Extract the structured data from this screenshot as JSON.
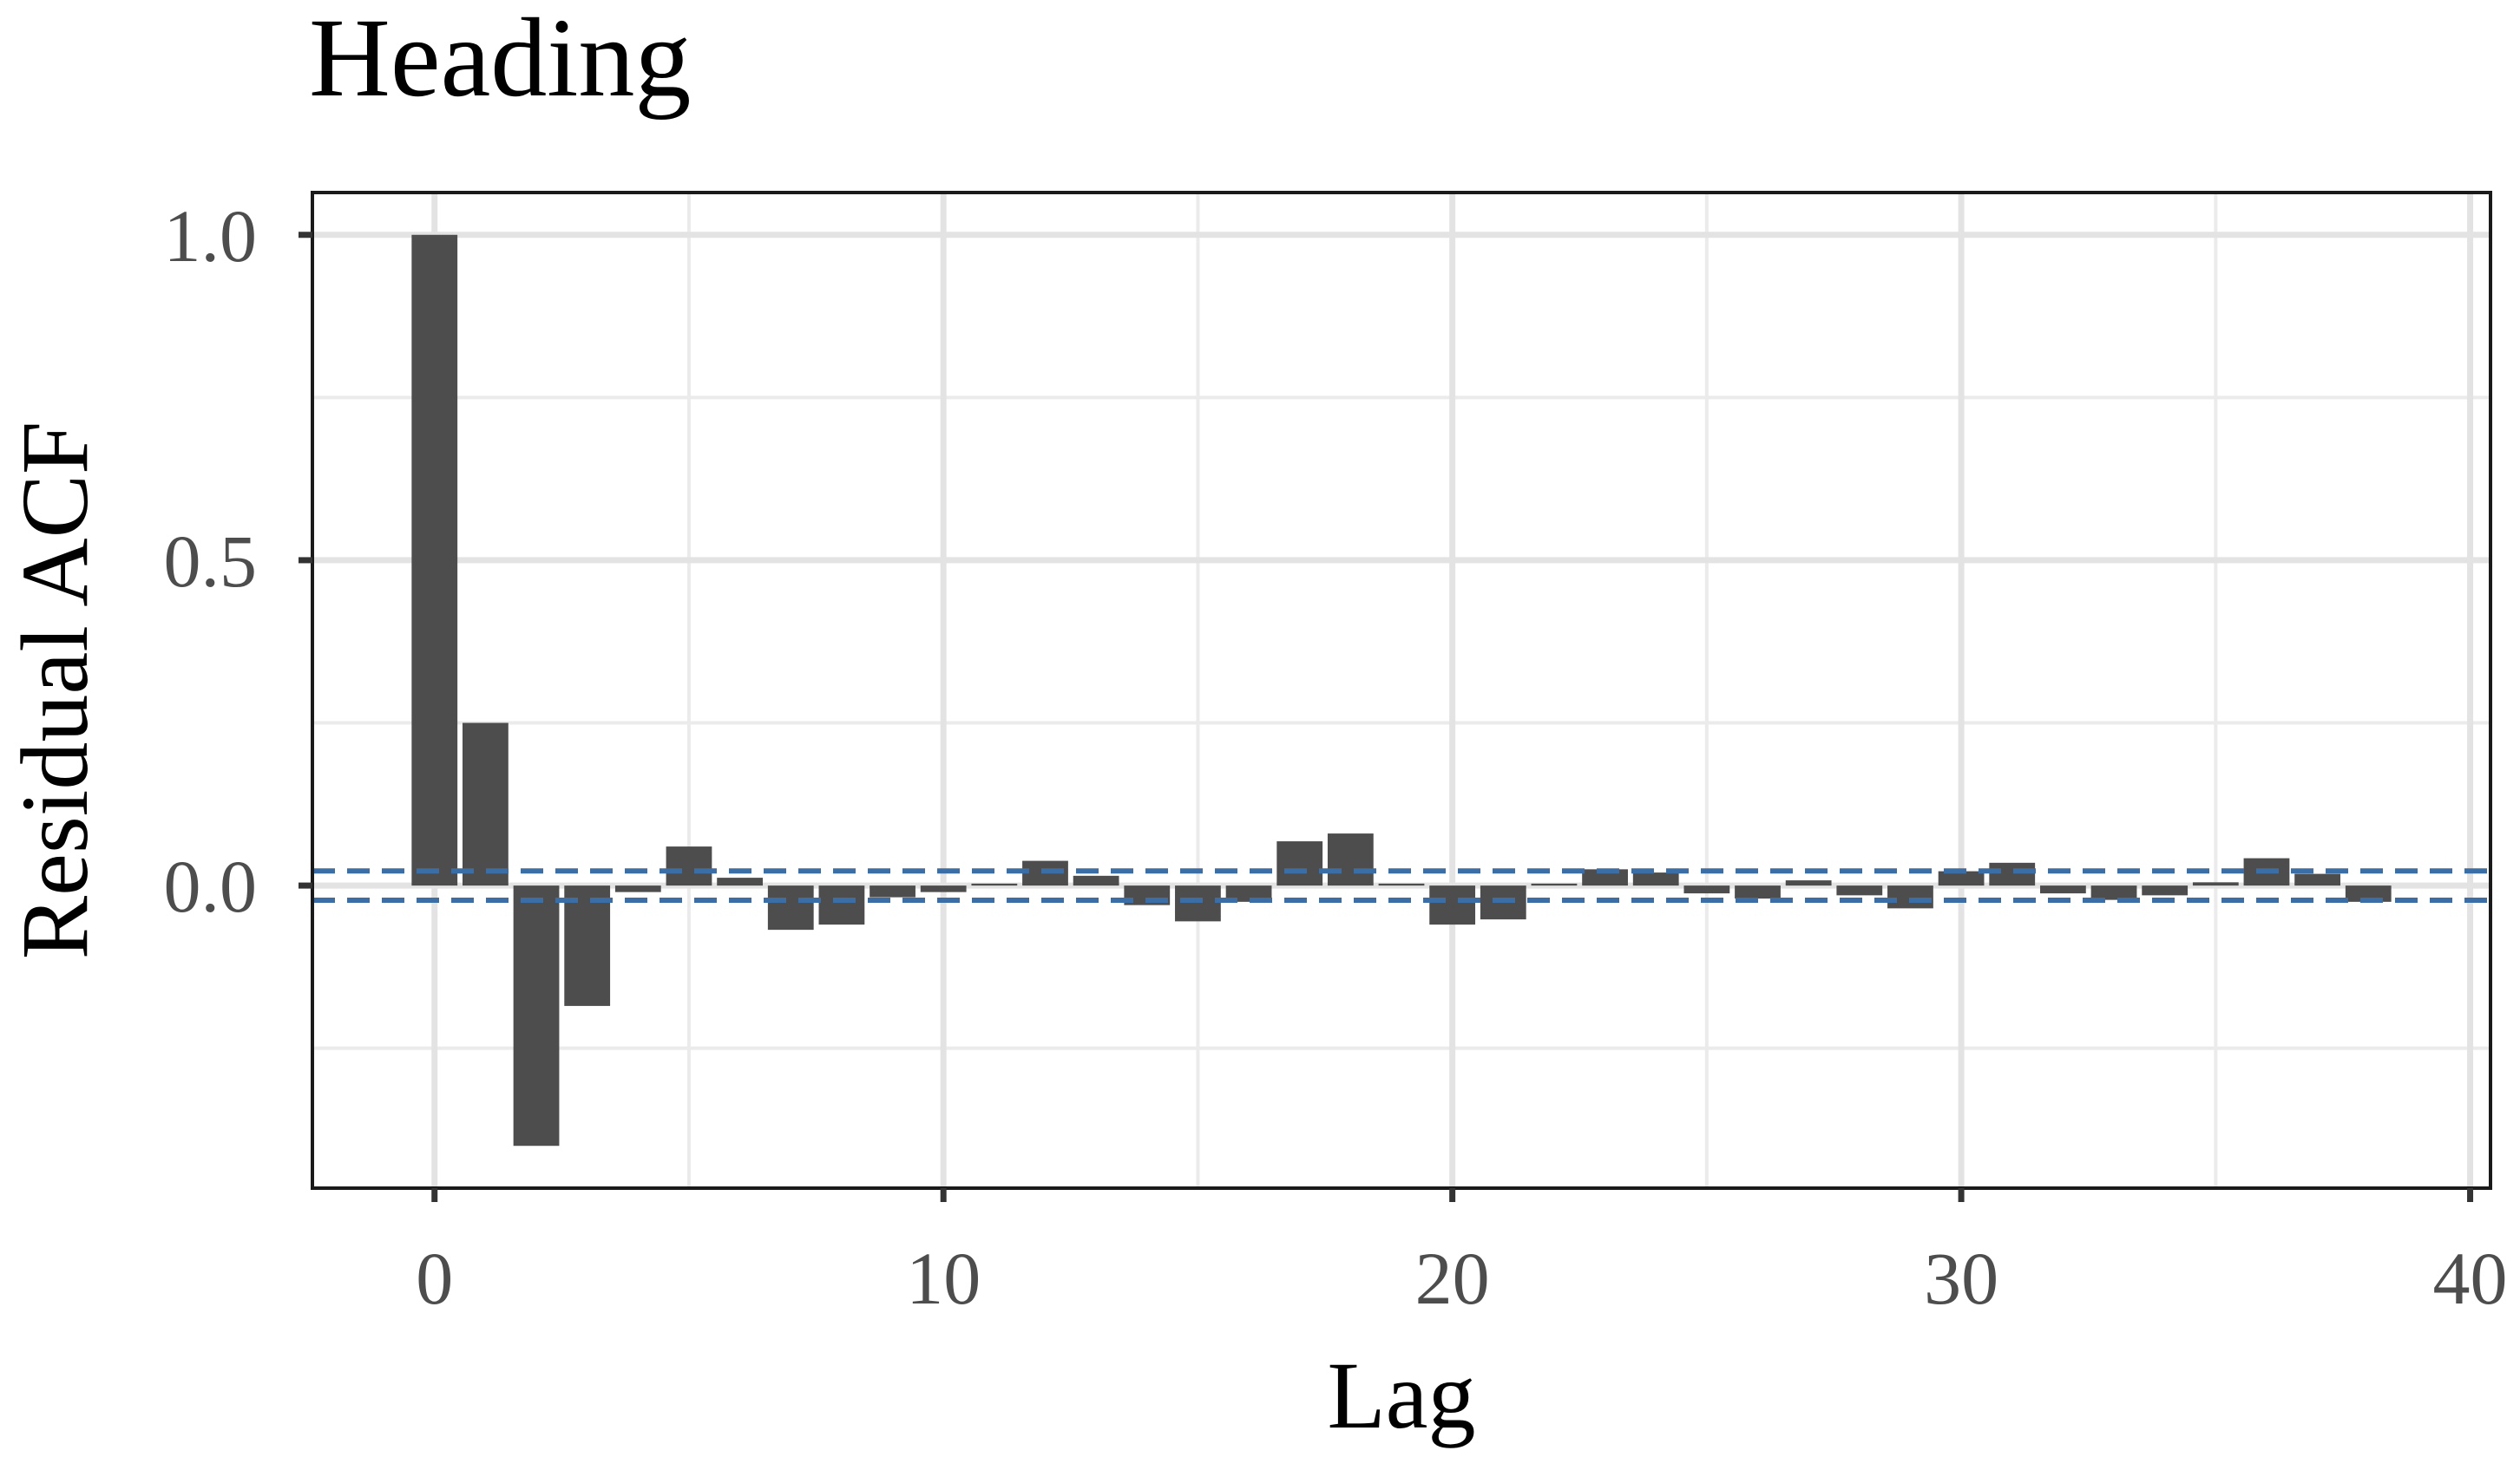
{
  "chart_data": {
    "type": "bar",
    "title": "Heading",
    "xlabel": "Lag",
    "ylabel": "Residual ACF",
    "xlim": [
      -2.4,
      40.4
    ],
    "ylim": [
      -0.465,
      1.065
    ],
    "x_ticks": [
      0,
      10,
      20,
      30,
      40
    ],
    "x_tick_labels": [
      "0",
      "10",
      "20",
      "30",
      "40"
    ],
    "y_ticks": [
      0.0,
      0.5,
      1.0
    ],
    "y_tick_labels": [
      "0.0",
      "0.5",
      "1.0"
    ],
    "grid": true,
    "x": [
      0,
      1,
      2,
      3,
      4,
      5,
      6,
      7,
      8,
      9,
      10,
      11,
      12,
      13,
      14,
      15,
      16,
      17,
      18,
      19,
      20,
      21,
      22,
      23,
      24,
      25,
      26,
      27,
      28,
      29,
      30,
      31,
      32,
      33,
      34,
      35,
      36,
      37,
      38
    ],
    "values": [
      1.0,
      0.25,
      -0.4,
      -0.185,
      -0.01,
      0.06,
      0.012,
      -0.068,
      -0.06,
      -0.018,
      -0.01,
      0.003,
      0.038,
      0.015,
      -0.03,
      -0.055,
      -0.025,
      0.068,
      0.08,
      0.003,
      -0.06,
      -0.052,
      0.003,
      0.025,
      0.02,
      -0.012,
      -0.02,
      0.008,
      -0.015,
      -0.035,
      0.022,
      0.035,
      -0.012,
      -0.022,
      -0.015,
      0.005,
      0.042,
      0.018,
      -0.025
    ],
    "bar_color": "#4d4d4d",
    "confidence_band": [
      -0.0225,
      0.0225
    ],
    "confidence_band_color": "#3a6ea5"
  }
}
